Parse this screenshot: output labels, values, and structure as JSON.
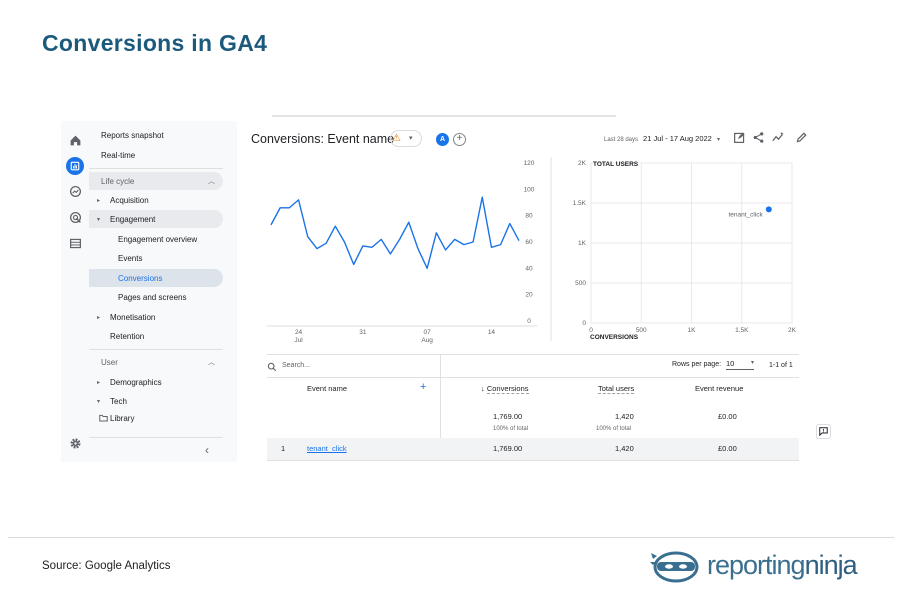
{
  "slide": {
    "title": "Conversions in GA4",
    "source": "Source: Google Analytics",
    "logo_text_a": "reporting",
    "logo_text_b": "ninja"
  },
  "rail": {
    "icons": [
      "home-icon",
      "reports-icon",
      "explore-icon",
      "advertising-icon",
      "configure-icon"
    ],
    "settings_icon": "gear-icon"
  },
  "nav": {
    "reports_snapshot": "Reports snapshot",
    "realtime": "Real-time",
    "lifecycle": "Life cycle",
    "acquisition": "Acquisition",
    "engagement": "Engagement",
    "engagement_overview": "Engagement overview",
    "events": "Events",
    "conversions": "Conversions",
    "pages_and_screens": "Pages and screens",
    "monetisation": "Monetisation",
    "retention": "Retention",
    "user": "User",
    "demographics": "Demographics",
    "tech": "Tech",
    "library": "Library"
  },
  "header": {
    "title": "Conversions: Event name",
    "avatar_letter": "A",
    "add_symbol": "+",
    "date_prefix": "Last 28 days",
    "date_range": "21 Jul - 17 Aug 2022"
  },
  "colors": {
    "accent": "#1a73e8",
    "warning": "#e37400",
    "title": "#1b5a7d"
  },
  "line_chart": {
    "type": "line",
    "x_tick_labels": [
      {
        "day": "24",
        "month": "Jul"
      },
      {
        "day": "31",
        "month": ""
      },
      {
        "day": "07",
        "month": "Aug"
      },
      {
        "day": "14",
        "month": ""
      }
    ],
    "y_ticks": [
      "120",
      "100",
      "80",
      "60",
      "40",
      "20",
      "0"
    ],
    "ylim": [
      0,
      120
    ],
    "values": [
      73,
      86,
      86,
      92,
      64,
      55,
      59,
      72,
      60,
      43,
      57,
      56,
      62,
      51,
      62,
      75,
      55,
      40,
      67,
      54,
      62,
      58,
      60,
      94,
      56,
      58,
      74,
      61
    ]
  },
  "scatter_chart": {
    "type": "scatter",
    "y_label": "TOTAL USERS",
    "x_label": "CONVERSIONS",
    "x_ticks": [
      "0",
      "500",
      "1K",
      "1.5K",
      "2K"
    ],
    "y_ticks": [
      "2K",
      "1.5K",
      "1K",
      "500",
      "0"
    ],
    "xlim": [
      0,
      2000
    ],
    "ylim": [
      0,
      2000
    ],
    "points": [
      {
        "label": "tenant_click",
        "x": 1769,
        "y": 1420
      }
    ]
  },
  "table": {
    "search_placeholder": "Search...",
    "rows_per_page_label": "Rows per page:",
    "rows_per_page_value": "10",
    "pager": "1-1 of 1",
    "col_event_name": "Event name",
    "col_conversions": "Conversions",
    "col_total_users": "Total users",
    "col_event_revenue": "Event revenue",
    "sort_arrow": "↓",
    "add_column": "+",
    "totals": {
      "conversions": "1,769.00",
      "conversions_sub": "100% of total",
      "users": "1,420",
      "users_sub": "100% of total",
      "revenue": "£0.00"
    },
    "rows": [
      {
        "index": "1",
        "event": "tenant_click",
        "conversions": "1,769.00",
        "users": "1,420",
        "revenue": "£0.00"
      }
    ]
  }
}
